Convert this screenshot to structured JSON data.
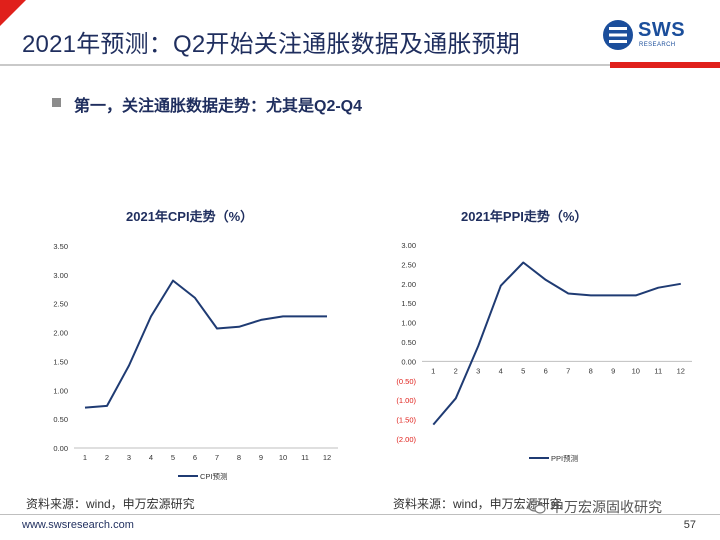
{
  "header": {
    "title": "2021年预测：Q2开始关注通胀数据及通胀预期",
    "logo_text": "SWS",
    "logo_subtext": "RESEARCH"
  },
  "bullet": {
    "text": "第一，关注通胀数据走势：尤其是Q2-Q4"
  },
  "chart_data": [
    {
      "type": "line",
      "title": "2021年CPI走势（%）",
      "categories": [
        "1",
        "2",
        "3",
        "4",
        "5",
        "6",
        "7",
        "8",
        "9",
        "10",
        "11",
        "12"
      ],
      "series": [
        {
          "name": "CPI预测",
          "values": [
            0.7,
            0.73,
            1.43,
            2.28,
            2.9,
            2.6,
            2.07,
            2.1,
            2.22,
            2.28,
            2.28,
            2.28
          ]
        }
      ],
      "ylim": [
        0,
        3.5
      ],
      "yticks": [
        "0.00",
        "0.50",
        "1.00",
        "1.50",
        "2.00",
        "2.50",
        "3.00",
        "3.50"
      ],
      "xlabel": "",
      "ylabel": "",
      "legend": "bottom",
      "color": "#1f3b73"
    },
    {
      "type": "line",
      "title": "2021年PPI走势（%）",
      "categories": [
        "1",
        "2",
        "3",
        "4",
        "5",
        "6",
        "7",
        "8",
        "9",
        "10",
        "11",
        "12"
      ],
      "series": [
        {
          "name": "PPI预测",
          "values": [
            -1.63,
            -0.95,
            0.4,
            1.95,
            2.55,
            2.1,
            1.75,
            1.7,
            1.7,
            1.7,
            1.9,
            2.0
          ]
        }
      ],
      "ylim": [
        -2,
        3
      ],
      "yticks": [
        "(2.00)",
        "(1.50)",
        "(1.00)",
        "(0.50)",
        "0.00",
        "0.50",
        "1.00",
        "1.50",
        "2.00",
        "2.50",
        "3.00"
      ],
      "negative_tick_color": "#e0201b",
      "xlabel": "",
      "ylabel": "",
      "legend": "bottom",
      "color": "#1f3b73"
    }
  ],
  "sources": {
    "left": "资料来源：wind，申万宏源研究",
    "right": "资料来源：wind，申万宏源研究",
    "watermark": "申万宏源固收研究"
  },
  "footer": {
    "url": "www.swsresearch.com",
    "page": "57"
  },
  "colors": {
    "accent_red": "#e0201b",
    "title_navy": "#1f2e5e",
    "line_navy": "#1f3b73",
    "logo_blue": "#1b4e9b"
  }
}
